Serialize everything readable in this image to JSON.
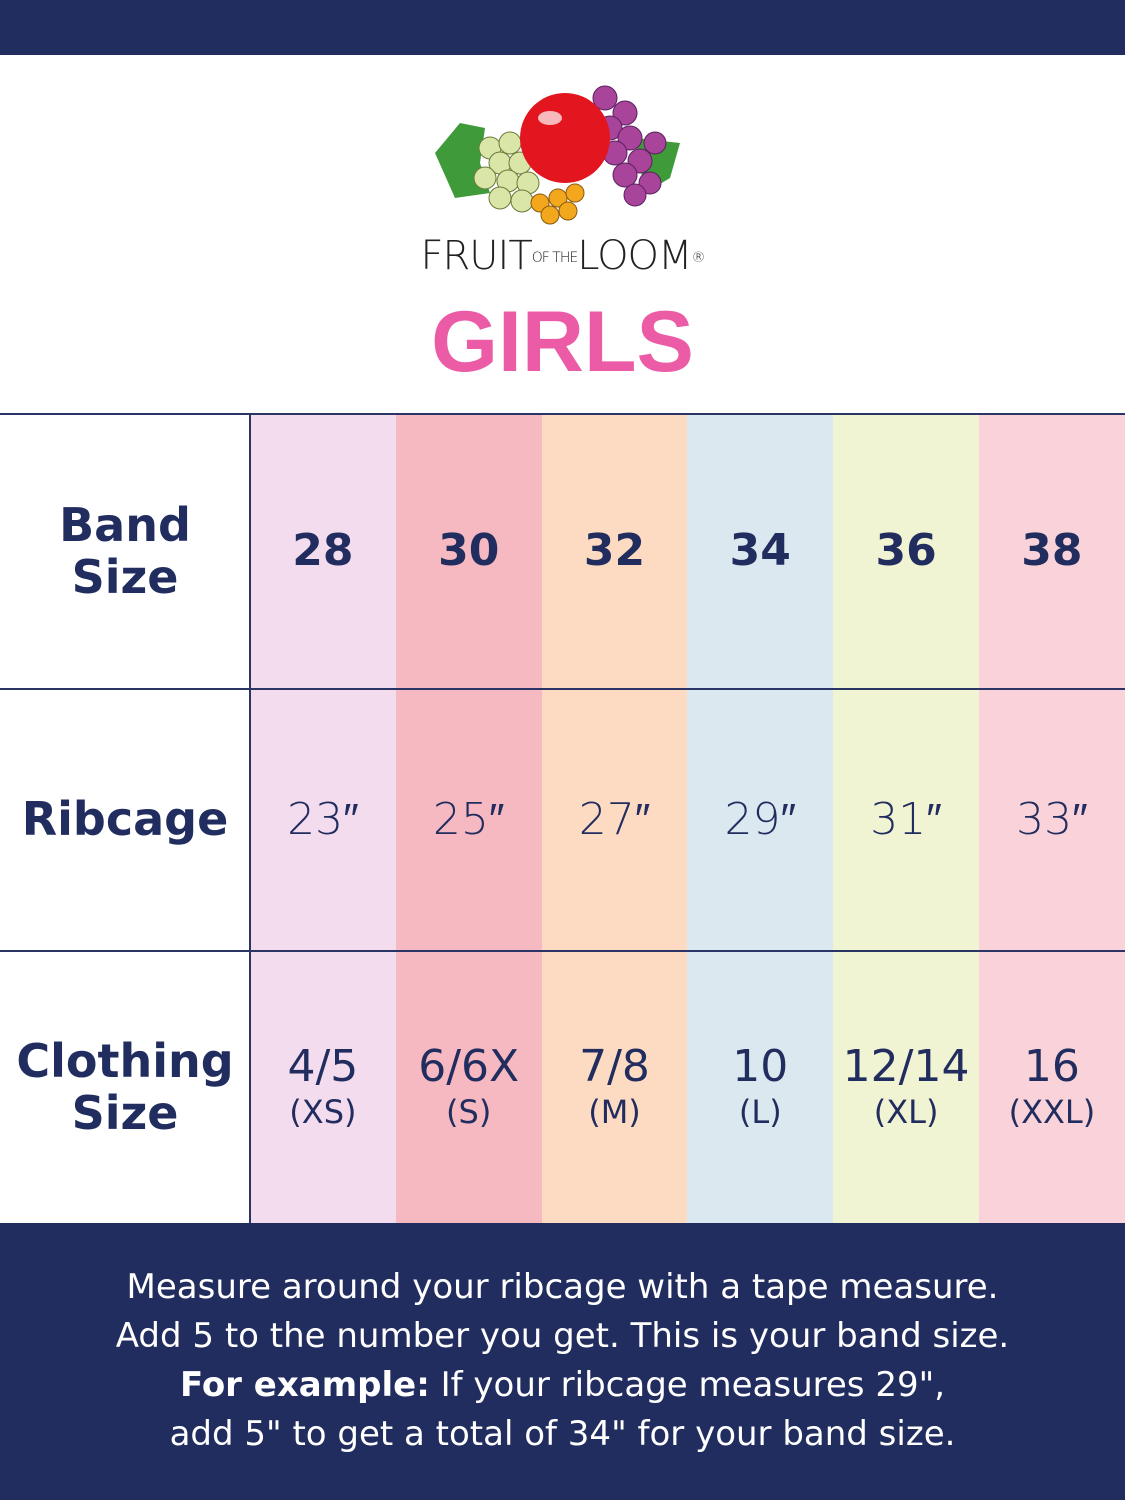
{
  "brand": {
    "logo_text_main": "FRUIT",
    "logo_text_of_the": "OF THE",
    "logo_text_end": "LOOM",
    "registered": "®"
  },
  "title": "GIRLS",
  "colors": {
    "navy": "#222d5f",
    "title_pink": "#ec5ca6"
  },
  "table": {
    "row_headers": [
      "Band Size",
      "Ribcage",
      "Clothing Size"
    ],
    "columns": [
      {
        "band": "28",
        "ribcage": "23″",
        "size": "4/5",
        "letter": "(XS)",
        "color": "#f2dcee"
      },
      {
        "band": "30",
        "ribcage": "25″",
        "size": "6/6X",
        "letter": "(S)",
        "color": "#f6b9c1"
      },
      {
        "band": "32",
        "ribcage": "27″",
        "size": "7/8",
        "letter": "(M)",
        "color": "#fddbc2"
      },
      {
        "band": "34",
        "ribcage": "29″",
        "size": "10",
        "letter": "(L)",
        "color": "#dce8ef"
      },
      {
        "band": "36",
        "ribcage": "31″",
        "size": "12/14",
        "letter": "(XL)",
        "color": "#f1f4d3"
      },
      {
        "band": "38",
        "ribcage": "33″",
        "size": "16",
        "letter": "(XXL)",
        "color": "#f9d3d9"
      }
    ]
  },
  "footer": {
    "line1": "Measure around your ribcage with a tape measure.",
    "line2": "Add 5 to the number you get. This is your band size.",
    "example_label": "For example:",
    "line3_rest": " If your ribcage measures 29\",",
    "line4": "add 5\" to get a total of 34\" for your band size."
  }
}
